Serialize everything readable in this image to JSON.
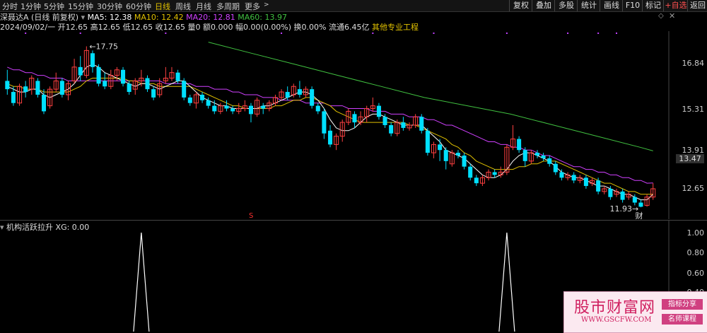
{
  "toolbar": {
    "periods": [
      "分时",
      "1分钟",
      "5分钟",
      "15分钟",
      "30分钟",
      "60分钟",
      "日线",
      "周线",
      "月线",
      "多周期",
      "更多"
    ],
    "active_period": "日线",
    "buttons": [
      "复权",
      "叠加",
      "多股",
      "统计",
      "画线",
      "F10",
      "标记",
      "+自选",
      "返回"
    ]
  },
  "quote": {
    "name": "深聂达A (日线 前复权)",
    "ma5": "MA5: 12.38",
    "ma10": "MA10: 12.42",
    "ma20": "MA20: 12.81",
    "ma60": "MA60: 13.97",
    "stats": "2024/09/02/一 开12.65 高12.65 低12.65 收12.65 量0 额0.000 幅0.00(0.00%) 换0.00% 流通6.45亿",
    "industry": "其他专业工程"
  },
  "colors": {
    "ma5": "#ffffff",
    "ma10": "#e0c000",
    "ma20": "#d040ff",
    "ma60": "#40c040",
    "up": "#ff4040",
    "down": "#00e0ff",
    "box": "#c04040"
  },
  "price_axis": {
    "labels": [
      "16.84",
      "15.31",
      "13.91",
      "12.65"
    ],
    "current": "13.47"
  },
  "chart_data": {
    "type": "candlestick",
    "ylim": [
      11.5,
      18.3
    ],
    "high_annotation": "17.75",
    "low_annotation": "11.93",
    "event_marks": [
      "S",
      "财"
    ],
    "candles": [
      [
        16.5,
        16.2,
        16.9,
        16.0
      ],
      [
        16.1,
        15.7,
        16.3,
        15.6
      ],
      [
        15.7,
        16.3,
        16.4,
        15.6
      ],
      [
        16.3,
        16.1,
        16.5,
        15.9
      ],
      [
        16.2,
        16.6,
        16.7,
        16.0
      ],
      [
        16.5,
        16.0,
        16.6,
        15.9
      ],
      [
        16.0,
        15.4,
        16.2,
        15.3
      ],
      [
        15.6,
        16.2,
        16.3,
        15.5
      ],
      [
        16.2,
        16.5,
        16.8,
        16.1
      ],
      [
        16.5,
        16.0,
        16.6,
        15.9
      ],
      [
        16.0,
        16.4,
        16.5,
        15.8
      ],
      [
        16.5,
        17.0,
        17.3,
        16.4
      ],
      [
        17.0,
        16.7,
        17.4,
        16.5
      ],
      [
        16.7,
        17.6,
        17.75,
        16.6
      ],
      [
        17.5,
        17.0,
        17.6,
        16.8
      ],
      [
        17.0,
        16.4,
        17.1,
        16.3
      ],
      [
        16.5,
        16.3,
        16.8,
        16.2
      ],
      [
        16.3,
        16.7,
        16.9,
        16.2
      ],
      [
        16.7,
        16.9,
        17.0,
        16.5
      ],
      [
        16.9,
        16.4,
        17.0,
        16.3
      ],
      [
        16.4,
        16.1,
        16.5,
        16.0
      ],
      [
        16.2,
        16.5,
        16.6,
        16.0
      ],
      [
        16.5,
        16.6,
        16.9,
        16.3
      ],
      [
        16.6,
        16.2,
        16.7,
        16.1
      ],
      [
        16.2,
        15.9,
        16.3,
        15.8
      ],
      [
        16.0,
        16.4,
        16.6,
        15.9
      ],
      [
        16.5,
        16.6,
        17.0,
        16.4
      ],
      [
        16.6,
        16.8,
        17.0,
        16.5
      ],
      [
        16.8,
        16.5,
        16.9,
        16.4
      ],
      [
        16.5,
        15.9,
        16.6,
        15.8
      ],
      [
        15.9,
        15.7,
        16.0,
        15.6
      ],
      [
        15.7,
        16.0,
        16.1,
        15.5
      ],
      [
        16.0,
        15.8,
        16.1,
        15.7
      ],
      [
        15.8,
        15.6,
        15.9,
        15.5
      ],
      [
        15.6,
        15.4,
        15.8,
        15.3
      ],
      [
        15.4,
        15.6,
        15.7,
        15.3
      ],
      [
        15.6,
        15.5,
        15.8,
        15.4
      ],
      [
        15.5,
        15.4,
        15.6,
        15.3
      ],
      [
        15.4,
        15.5,
        15.7,
        15.3
      ],
      [
        15.5,
        15.6,
        15.8,
        15.4
      ],
      [
        15.6,
        15.3,
        15.7,
        15.0
      ],
      [
        15.3,
        15.8,
        15.9,
        15.2
      ],
      [
        15.6,
        15.5,
        15.7,
        15.3
      ],
      [
        15.5,
        15.7,
        15.8,
        15.4
      ],
      [
        15.7,
        15.9,
        16.0,
        15.6
      ],
      [
        15.9,
        16.1,
        16.2,
        15.8
      ],
      [
        16.1,
        15.9,
        16.3,
        15.8
      ],
      [
        16.0,
        16.3,
        16.4,
        15.9
      ],
      [
        16.2,
        16.0,
        16.5,
        15.9
      ],
      [
        16.0,
        16.2,
        16.3,
        15.9
      ],
      [
        16.2,
        15.6,
        16.3,
        15.5
      ],
      [
        15.6,
        15.4,
        15.7,
        15.3
      ],
      [
        15.4,
        14.6,
        15.5,
        14.4
      ],
      [
        14.7,
        14.2,
        14.9,
        14.1
      ],
      [
        14.2,
        14.5,
        14.6,
        14.0
      ],
      [
        14.5,
        15.0,
        15.1,
        14.3
      ],
      [
        15.0,
        15.4,
        15.5,
        14.9
      ],
      [
        15.3,
        15.0,
        15.4,
        14.8
      ],
      [
        15.0,
        15.2,
        15.4,
        14.9
      ],
      [
        15.2,
        15.5,
        15.6,
        15.0
      ],
      [
        15.5,
        15.6,
        15.9,
        15.4
      ],
      [
        15.6,
        15.2,
        15.7,
        15.1
      ],
      [
        15.2,
        14.9,
        15.3,
        14.8
      ],
      [
        14.9,
        14.6,
        15.0,
        14.5
      ],
      [
        14.6,
        15.0,
        15.1,
        14.5
      ],
      [
        15.0,
        14.8,
        15.2,
        14.7
      ],
      [
        14.8,
        14.9,
        15.0,
        14.7
      ],
      [
        14.9,
        15.2,
        15.3,
        14.8
      ],
      [
        15.2,
        14.7,
        15.3,
        14.6
      ],
      [
        14.7,
        13.9,
        14.8,
        13.8
      ],
      [
        13.9,
        14.2,
        14.3,
        13.7
      ],
      [
        14.2,
        14.0,
        14.4,
        13.6
      ],
      [
        14.0,
        13.6,
        14.1,
        13.3
      ],
      [
        13.5,
        13.9,
        14.0,
        13.4
      ],
      [
        13.9,
        13.8,
        14.0,
        13.7
      ],
      [
        13.8,
        13.4,
        13.9,
        13.3
      ],
      [
        13.4,
        13.0,
        13.5,
        12.9
      ],
      [
        13.0,
        12.8,
        13.1,
        12.7
      ],
      [
        12.8,
        13.0,
        13.1,
        12.7
      ],
      [
        13.0,
        13.2,
        13.3,
        12.9
      ],
      [
        13.2,
        13.1,
        13.3,
        13.0
      ],
      [
        13.1,
        13.2,
        13.4,
        13.0
      ],
      [
        13.2,
        14.1,
        14.2,
        13.1
      ],
      [
        14.1,
        14.4,
        14.9,
        14.0
      ],
      [
        14.4,
        14.0,
        14.5,
        13.9
      ],
      [
        14.0,
        13.6,
        14.1,
        13.4
      ],
      [
        13.6,
        13.9,
        14.0,
        13.5
      ],
      [
        13.9,
        13.8,
        14.0,
        13.7
      ],
      [
        13.8,
        13.7,
        13.9,
        13.6
      ],
      [
        13.7,
        13.5,
        13.8,
        13.4
      ],
      [
        13.5,
        13.2,
        13.6,
        13.1
      ],
      [
        13.2,
        13.0,
        13.3,
        12.9
      ],
      [
        13.0,
        13.1,
        13.2,
        12.9
      ],
      [
        13.1,
        12.9,
        13.2,
        12.8
      ],
      [
        12.9,
        13.0,
        13.1,
        12.8
      ],
      [
        13.0,
        12.7,
        13.1,
        12.6
      ],
      [
        12.8,
        12.9,
        13.0,
        12.7
      ],
      [
        12.9,
        12.5,
        13.0,
        12.4
      ],
      [
        12.5,
        12.6,
        12.7,
        12.4
      ],
      [
        12.6,
        12.3,
        12.7,
        12.2
      ],
      [
        12.4,
        12.5,
        12.6,
        12.3
      ],
      [
        12.5,
        12.2,
        12.6,
        12.1
      ],
      [
        12.3,
        12.4,
        12.5,
        12.2
      ],
      [
        12.3,
        12.1,
        12.4,
        12.0
      ],
      [
        12.1,
        11.95,
        12.2,
        11.93
      ],
      [
        12.0,
        12.3,
        12.4,
        11.95
      ],
      [
        12.3,
        12.6,
        12.8,
        12.2
      ]
    ],
    "ma_lines": {
      "ma5": [
        16.3,
        16.2,
        16.1,
        16.1,
        16.2,
        16.2,
        16.0,
        15.9,
        16.0,
        16.1,
        16.2,
        16.4,
        16.7,
        17.0,
        17.1,
        17.0,
        16.8,
        16.7,
        16.6,
        16.5,
        16.4,
        16.3,
        16.4,
        16.4,
        16.3,
        16.2,
        16.3,
        16.4,
        16.5,
        16.5,
        16.3,
        16.1,
        15.9,
        15.8,
        15.7,
        15.6,
        15.6,
        15.5,
        15.5,
        15.5,
        15.5,
        15.5,
        15.6,
        15.6,
        15.7,
        15.8,
        15.9,
        16.0,
        16.1,
        16.1,
        16.0,
        15.8,
        15.5,
        15.1,
        14.8,
        14.7,
        14.7,
        14.8,
        15.0,
        15.2,
        15.3,
        15.3,
        15.2,
        15.1,
        15.0,
        14.9,
        14.9,
        14.9,
        14.9,
        14.7,
        14.5,
        14.3,
        14.0,
        13.9,
        13.8,
        13.7,
        13.5,
        13.3,
        13.1,
        13.0,
        13.0,
        13.1,
        13.3,
        13.6,
        13.8,
        13.9,
        13.9,
        13.8,
        13.7,
        13.6,
        13.4,
        13.2,
        13.1,
        13.0,
        13.0,
        12.9,
        12.8,
        12.7,
        12.7,
        12.6,
        12.5,
        12.4,
        12.4,
        12.3,
        12.2,
        12.2,
        12.4
      ],
      "ma10": [
        16.4,
        16.3,
        16.3,
        16.2,
        16.2,
        16.2,
        16.1,
        16.1,
        16.1,
        16.1,
        16.1,
        16.2,
        16.3,
        16.5,
        16.6,
        16.6,
        16.6,
        16.6,
        16.6,
        16.6,
        16.5,
        16.5,
        16.4,
        16.4,
        16.4,
        16.3,
        16.3,
        16.3,
        16.3,
        16.3,
        16.3,
        16.2,
        16.1,
        16.0,
        15.9,
        15.8,
        15.7,
        15.6,
        15.6,
        15.5,
        15.5,
        15.5,
        15.5,
        15.5,
        15.6,
        15.6,
        15.7,
        15.8,
        15.8,
        15.9,
        15.9,
        15.8,
        15.7,
        15.6,
        15.4,
        15.3,
        15.2,
        15.1,
        15.0,
        15.0,
        15.0,
        15.0,
        15.0,
        15.0,
        15.0,
        15.0,
        14.9,
        14.9,
        14.8,
        14.7,
        14.6,
        14.5,
        14.4,
        14.2,
        14.1,
        13.9,
        13.8,
        13.6,
        13.5,
        13.4,
        13.3,
        13.3,
        13.3,
        13.3,
        13.4,
        13.4,
        13.5,
        13.5,
        13.6,
        13.6,
        13.6,
        13.5,
        13.4,
        13.3,
        13.2,
        13.1,
        13.0,
        12.9,
        12.8,
        12.8,
        12.7,
        12.6,
        12.5,
        12.5,
        12.4,
        12.4,
        12.4
      ],
      "ma20": [
        17.0,
        16.9,
        16.9,
        16.8,
        16.8,
        16.7,
        16.7,
        16.6,
        16.6,
        16.6,
        16.5,
        16.5,
        16.5,
        16.5,
        16.5,
        16.5,
        16.5,
        16.5,
        16.5,
        16.5,
        16.5,
        16.5,
        16.5,
        16.5,
        16.5,
        16.5,
        16.4,
        16.4,
        16.4,
        16.4,
        16.4,
        16.3,
        16.3,
        16.3,
        16.2,
        16.2,
        16.2,
        16.1,
        16.1,
        16.0,
        16.0,
        16.0,
        15.9,
        15.9,
        15.9,
        15.8,
        15.8,
        15.8,
        15.8,
        15.7,
        15.7,
        15.7,
        15.7,
        15.6,
        15.6,
        15.6,
        15.5,
        15.5,
        15.5,
        15.5,
        15.4,
        15.4,
        15.4,
        15.3,
        15.3,
        15.3,
        15.2,
        15.2,
        15.2,
        15.1,
        15.1,
        15.0,
        14.9,
        14.9,
        14.8,
        14.7,
        14.6,
        14.5,
        14.4,
        14.3,
        14.3,
        14.2,
        14.2,
        14.1,
        14.1,
        14.0,
        14.0,
        13.9,
        13.8,
        13.8,
        13.7,
        13.6,
        13.5,
        13.4,
        13.4,
        13.3,
        13.3,
        13.2,
        13.2,
        13.1,
        13.1,
        13.0,
        13.0,
        12.9,
        12.9,
        12.8,
        12.81
      ],
      "ma60": [
        null,
        null,
        null,
        null,
        null,
        null,
        null,
        null,
        null,
        null,
        null,
        null,
        null,
        null,
        null,
        null,
        null,
        null,
        null,
        null,
        null,
        null,
        null,
        null,
        null,
        null,
        null,
        null,
        null,
        null,
        null,
        null,
        null,
        null,
        null,
        null,
        null,
        null,
        null,
        null,
        null,
        null,
        null,
        null,
        null,
        null,
        null,
        null,
        null,
        null,
        null,
        null,
        null,
        null,
        null,
        null,
        null,
        null,
        null,
        null,
        null,
        null,
        null,
        null,
        null,
        null,
        null,
        null,
        null,
        null,
        null,
        null,
        null,
        null,
        null,
        null,
        null,
        null,
        null,
        null,
        null,
        null,
        null,
        null,
        null,
        null,
        null,
        null,
        null,
        null,
        null,
        null,
        null,
        null,
        null,
        null,
        null,
        null,
        null,
        null,
        null,
        null,
        null,
        null,
        null,
        null,
        null
      ]
    },
    "ma60_points": [
      [
        0,
        17.9
      ],
      [
        10,
        17.5
      ],
      [
        20,
        17.1
      ],
      [
        30,
        16.7
      ],
      [
        40,
        16.3
      ],
      [
        50,
        15.9
      ],
      [
        60,
        15.6
      ],
      [
        70,
        15.3
      ],
      [
        80,
        14.9
      ],
      [
        90,
        14.5
      ],
      [
        100,
        14.1
      ],
      [
        103,
        13.97
      ]
    ],
    "ma60_start": 33
  },
  "indicator": {
    "name": "机构活跃拉升",
    "value": "XG: 0.00",
    "ylabels": [
      "1.00",
      "0.80",
      "0.60",
      "0.40"
    ],
    "spikes": [
      22,
      82
    ],
    "ylim": [
      0,
      1
    ]
  },
  "watermark": {
    "title": "股市财富网",
    "url": "WWW.GSCFW.COM",
    "btn1": "指标分享",
    "btn2": "名师课程"
  }
}
